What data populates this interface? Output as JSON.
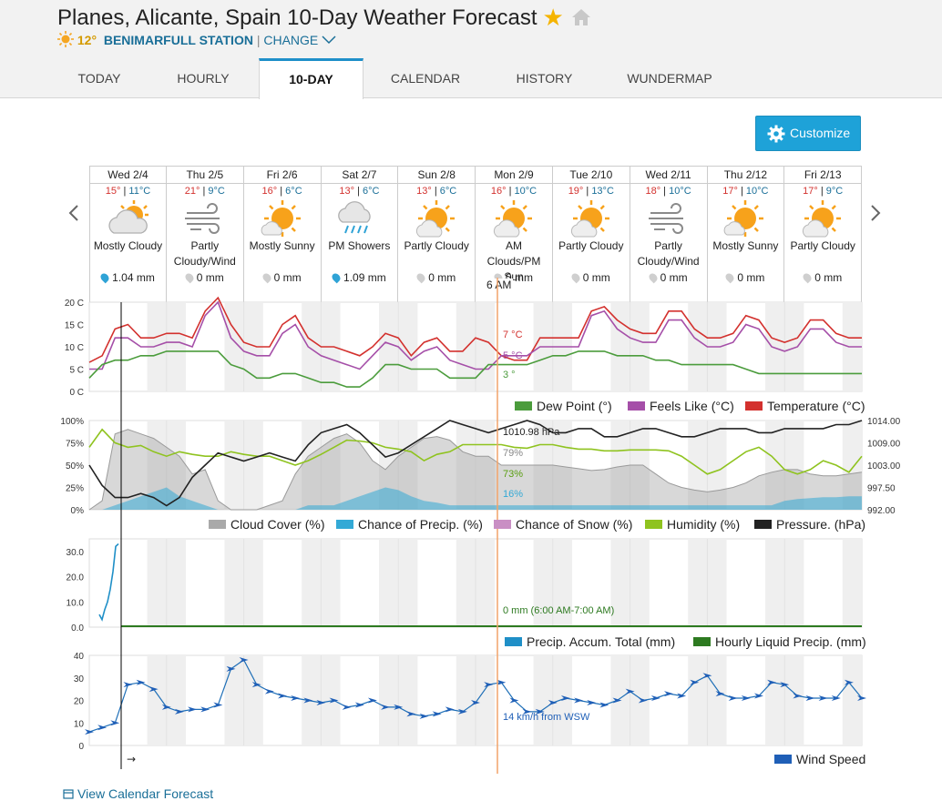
{
  "header": {
    "title": "Planes, Alicante, Spain 10-Day Weather Forecast",
    "station_temp": "12°",
    "station_name": "BENIMARFULL STATION",
    "separator": "|",
    "change_label": "CHANGE"
  },
  "tabs": [
    {
      "label": "TODAY"
    },
    {
      "label": "HOURLY"
    },
    {
      "label": "10-DAY"
    },
    {
      "label": "CALENDAR"
    },
    {
      "label": "HISTORY"
    },
    {
      "label": "WUNDERMAP"
    }
  ],
  "customize_label": "Customize",
  "days": [
    {
      "date": "Wed 2/4",
      "hi": "15°",
      "lo": "11°C",
      "icon": "mostly-cloudy",
      "cond": "Mostly Cloudy",
      "precip": "1.04 mm",
      "rain": true
    },
    {
      "date": "Thu 2/5",
      "hi": "21°",
      "lo": "9°C",
      "icon": "wind",
      "cond": "Partly Cloudy/Wind",
      "precip": "0 mm",
      "rain": false
    },
    {
      "date": "Fri 2/6",
      "hi": "16°",
      "lo": "6°C",
      "icon": "mostly-sunny",
      "cond": "Mostly Sunny",
      "precip": "0 mm",
      "rain": false
    },
    {
      "date": "Sat 2/7",
      "hi": "13°",
      "lo": "6°C",
      "icon": "showers",
      "cond": "PM Showers",
      "precip": "1.09 mm",
      "rain": true
    },
    {
      "date": "Sun 2/8",
      "hi": "13°",
      "lo": "6°C",
      "icon": "partly-cloudy",
      "cond": "Partly Cloudy",
      "precip": "0 mm",
      "rain": false
    },
    {
      "date": "Mon 2/9",
      "hi": "16°",
      "lo": "10°C",
      "icon": "partly-cloudy",
      "cond": "AM Clouds/PM Sun",
      "precip": "0 mm",
      "rain": false
    },
    {
      "date": "Tue 2/10",
      "hi": "19°",
      "lo": "13°C",
      "icon": "partly-cloudy",
      "cond": "Partly Cloudy",
      "precip": "0 mm",
      "rain": false
    },
    {
      "date": "Wed 2/11",
      "hi": "18°",
      "lo": "10°C",
      "icon": "wind",
      "cond": "Partly Cloudy/Wind",
      "precip": "0 mm",
      "rain": false
    },
    {
      "date": "Thu 2/12",
      "hi": "17°",
      "lo": "10°C",
      "icon": "mostly-sunny",
      "cond": "Mostly Sunny",
      "precip": "0 mm",
      "rain": false
    },
    {
      "date": "Fri 2/13",
      "hi": "17°",
      "lo": "9°C",
      "icon": "partly-cloudy",
      "cond": "Partly Cloudy",
      "precip": "0 mm",
      "rain": false
    }
  ],
  "hover_time": "6 AM",
  "colors": {
    "temp": "#d3312e",
    "feels": "#a54fa8",
    "dew": "#4b9c3c",
    "cloud": "#a9a9a9",
    "precip": "#33a9d6",
    "snow": "#c98fc4",
    "humidity": "#8fc31f",
    "pressure": "#222222",
    "accum": "#1f8fc7",
    "hourly": "#2d7a20",
    "wind": "#1f6fb7",
    "accent": "#1ea2d8"
  },
  "chart_data": [
    {
      "type": "line",
      "title": "Temperature",
      "y_ticks": [
        "20 C",
        "15 C",
        "10 C",
        "5 C",
        "0 C"
      ],
      "ylim": [
        0,
        20
      ],
      "x": [
        0,
        4,
        8,
        12,
        16,
        20,
        24,
        28,
        32,
        36,
        40,
        44,
        48,
        52,
        56,
        60,
        64,
        68,
        72,
        76,
        80,
        84,
        88,
        92,
        96,
        100,
        104,
        108,
        112,
        116,
        120,
        124,
        128,
        132,
        136,
        140,
        144,
        148,
        152,
        156,
        160,
        164,
        168,
        172,
        176,
        180,
        184,
        188,
        192,
        196,
        200,
        204,
        208,
        212,
        216,
        220,
        224,
        228,
        232,
        236,
        240
      ],
      "series": [
        {
          "name": "Temperature (°C)",
          "values": [
            6.5,
            8,
            14,
            15,
            12,
            12,
            13,
            13,
            12,
            18,
            21,
            15,
            11,
            10,
            10,
            15,
            17,
            12,
            10,
            10,
            9,
            8,
            10,
            13,
            12,
            8,
            11,
            12,
            9,
            9,
            12,
            11,
            8,
            7,
            7,
            12,
            12,
            12,
            12,
            18,
            19,
            16,
            14,
            13,
            13,
            18,
            18,
            14,
            12,
            12,
            13,
            17,
            16,
            12,
            11,
            12,
            16,
            16,
            13,
            12,
            12
          ]
        },
        {
          "name": "Feels Like (°C)",
          "values": [
            5,
            5,
            12,
            12,
            10,
            10,
            11,
            11,
            10,
            17,
            20,
            12,
            9,
            8,
            8,
            13,
            15,
            10,
            8,
            7,
            6,
            5,
            8,
            11,
            10,
            7,
            9,
            10,
            7,
            6,
            5,
            5,
            8,
            8,
            8,
            10,
            10,
            10,
            10,
            17,
            18,
            14,
            12,
            11,
            11,
            16,
            16,
            12,
            10,
            10,
            11,
            15,
            14,
            10,
            9,
            10,
            14,
            14,
            11,
            10,
            10
          ]
        },
        {
          "name": "Dew Point (°)",
          "values": [
            3,
            6,
            7,
            7,
            8,
            8,
            9,
            9,
            9,
            9,
            9,
            6,
            5,
            3,
            3,
            4,
            4,
            3,
            2,
            2,
            1,
            1,
            3,
            6,
            6,
            5,
            5,
            5,
            3,
            3,
            3,
            6,
            6,
            6,
            6,
            7,
            8,
            8,
            9,
            9,
            9,
            8,
            8,
            8,
            7,
            7,
            6,
            6,
            6,
            6,
            6,
            5,
            4,
            4,
            4,
            4,
            4,
            4,
            4,
            4,
            4
          ]
        }
      ],
      "hover_labels": [
        "7 °C",
        "5 °C",
        "3 °"
      ],
      "legend": [
        "Dew Point (°)",
        "Feels Like (°C)",
        "Temperature (°C)"
      ]
    },
    {
      "type": "area",
      "title": "Cloud / Humidity / Pressure",
      "y_ticks_left": [
        "100%",
        "75%",
        "50%",
        "25%",
        "0%"
      ],
      "y_ticks_right": [
        "1014.00",
        "1009.00",
        "1003.00",
        "997.50",
        "992.00"
      ],
      "ylim": [
        0,
        100
      ],
      "pressure_range": [
        992,
        1014
      ],
      "x": [
        0,
        4,
        8,
        12,
        16,
        20,
        24,
        28,
        32,
        36,
        40,
        44,
        48,
        52,
        56,
        60,
        64,
        68,
        72,
        76,
        80,
        84,
        88,
        92,
        96,
        100,
        104,
        108,
        112,
        116,
        120,
        124,
        128,
        132,
        136,
        140,
        144,
        148,
        152,
        156,
        160,
        164,
        168,
        172,
        176,
        180,
        184,
        188,
        192,
        196,
        200,
        204,
        208,
        212,
        216,
        220,
        224,
        228,
        232,
        236,
        240
      ],
      "series": [
        {
          "name": "Cloud Cover (%)",
          "values": [
            0,
            10,
            85,
            90,
            85,
            80,
            70,
            60,
            40,
            45,
            10,
            0,
            0,
            0,
            5,
            10,
            40,
            60,
            70,
            80,
            85,
            75,
            55,
            45,
            60,
            70,
            80,
            82,
            78,
            65,
            60,
            60,
            50,
            50,
            50,
            50,
            50,
            48,
            46,
            44,
            45,
            48,
            50,
            50,
            40,
            30,
            25,
            22,
            20,
            22,
            25,
            30,
            38,
            42,
            45,
            45,
            40,
            38,
            38,
            40,
            42
          ]
        },
        {
          "name": "Chance of Precip. (%)",
          "values": [
            0,
            0,
            5,
            10,
            15,
            20,
            25,
            15,
            10,
            5,
            0,
            0,
            0,
            0,
            0,
            0,
            0,
            5,
            5,
            5,
            10,
            15,
            20,
            25,
            22,
            15,
            10,
            8,
            5,
            5,
            5,
            5,
            5,
            5,
            5,
            5,
            5,
            5,
            5,
            5,
            5,
            5,
            5,
            5,
            5,
            5,
            5,
            5,
            5,
            5,
            5,
            5,
            5,
            5,
            10,
            12,
            13,
            14,
            14,
            15,
            15
          ]
        },
        {
          "name": "Chance of Snow (%)",
          "values": [
            0,
            0,
            0,
            0,
            0,
            0,
            0,
            0,
            0,
            0,
            0,
            0,
            0,
            0,
            0,
            0,
            0,
            0,
            0,
            0,
            0,
            0,
            0,
            0,
            0,
            0,
            0,
            0,
            0,
            0,
            0,
            0,
            0,
            0,
            0,
            0,
            0,
            0,
            0,
            0,
            0,
            0,
            0,
            0,
            0,
            0,
            0,
            0,
            0,
            0,
            0,
            0,
            0,
            0,
            0,
            0,
            0,
            0,
            0,
            0,
            0
          ]
        },
        {
          "name": "Humidity (%)",
          "values": [
            70,
            90,
            75,
            70,
            72,
            65,
            60,
            65,
            62,
            60,
            60,
            65,
            62,
            60,
            60,
            55,
            50,
            55,
            62,
            70,
            78,
            77,
            75,
            70,
            68,
            65,
            55,
            62,
            65,
            73,
            73,
            73,
            73,
            70,
            69,
            73,
            73,
            70,
            68,
            68,
            66,
            66,
            67,
            67,
            67,
            66,
            60,
            50,
            40,
            45,
            55,
            65,
            70,
            60,
            45,
            40,
            45,
            55,
            50,
            42,
            60
          ]
        },
        {
          "name": "Pressure. (hPa)",
          "values": [
            1003,
            998,
            995,
            995,
            996,
            995,
            993,
            995,
            1000,
            1003,
            1006,
            1005,
            1004,
            1005,
            1006,
            1005,
            1004,
            1008,
            1011,
            1012,
            1013,
            1011,
            1008,
            1005,
            1006,
            1008,
            1010,
            1012,
            1014,
            1013,
            1012,
            1011,
            1012,
            1013,
            1014,
            1013,
            1011,
            1011,
            1012,
            1012,
            1010,
            1010,
            1011,
            1012,
            1012,
            1011,
            1010,
            1010,
            1011,
            1012,
            1012,
            1012,
            1011,
            1011,
            1012,
            1012,
            1012,
            1012,
            1013,
            1013,
            1014
          ]
        }
      ],
      "hover_labels": [
        "1010.98 hPa",
        "79%",
        "73%",
        "16%"
      ],
      "legend": [
        "Cloud Cover (%)",
        "Chance of Precip. (%)",
        "Chance of Snow (%)",
        "Humidity (%)",
        "Pressure. (hPa)"
      ]
    },
    {
      "type": "line",
      "title": "Precipitation",
      "y_ticks": [
        "30.0",
        "20.0",
        "10.0",
        "0.0"
      ],
      "ylim": [
        0,
        35
      ],
      "series": [
        {
          "name": "Precip. Accum. Total (mm)",
          "x": [
            0,
            1,
            2,
            3,
            4,
            5,
            6,
            7,
            8,
            9
          ],
          "values": [
            0,
            0,
            0,
            0,
            0,
            0,
            0,
            0,
            0,
            0
          ]
        },
        {
          "name": "Hourly Liquid Precip. (mm)",
          "values": [
            0
          ]
        }
      ],
      "accum_visible": [
        [
          -8,
          5
        ],
        [
          -7,
          3
        ],
        [
          -6,
          7
        ],
        [
          -5,
          10
        ],
        [
          -4,
          15
        ],
        [
          -3,
          22
        ],
        [
          -2,
          32
        ],
        [
          -1,
          33
        ]
      ],
      "hover_labels": [
        "0 mm (6:00 AM-7:00 AM)"
      ],
      "legend": [
        "Precip. Accum. Total (mm)",
        "Hourly Liquid Precip. (mm)"
      ]
    },
    {
      "type": "line",
      "title": "Wind",
      "y_ticks": [
        "40",
        "30",
        "20",
        "10",
        "0"
      ],
      "ylim": [
        0,
        40
      ],
      "x": [
        0,
        4,
        8,
        12,
        16,
        20,
        24,
        28,
        32,
        36,
        40,
        44,
        48,
        52,
        56,
        60,
        64,
        68,
        72,
        76,
        80,
        84,
        88,
        92,
        96,
        100,
        104,
        108,
        112,
        116,
        120,
        124,
        128,
        132,
        136,
        140,
        144,
        148,
        152,
        156,
        160,
        164,
        168,
        172,
        176,
        180,
        184,
        188,
        192,
        196,
        200,
        204,
        208,
        212,
        216,
        220,
        224,
        228,
        232,
        236,
        240
      ],
      "series": [
        {
          "name": "Wind Speed",
          "values": [
            6,
            8,
            10,
            27,
            28,
            25,
            17,
            15,
            16,
            16,
            18,
            34,
            38,
            27,
            24,
            22,
            21,
            20,
            19,
            20,
            17,
            18,
            20,
            17,
            17,
            14,
            13,
            14,
            16,
            15,
            19,
            27,
            28,
            20,
            15,
            15,
            19,
            21,
            20,
            19,
            18,
            20,
            24,
            20,
            21,
            23,
            22,
            28,
            31,
            23,
            21,
            21,
            22,
            28,
            27,
            22,
            21,
            21,
            21,
            28,
            21
          ]
        }
      ],
      "hover_labels": [
        "14 km/h from WSW"
      ],
      "footnote": "→",
      "legend": [
        "Wind Speed"
      ]
    }
  ],
  "calendar_link": "View Calendar Forecast"
}
